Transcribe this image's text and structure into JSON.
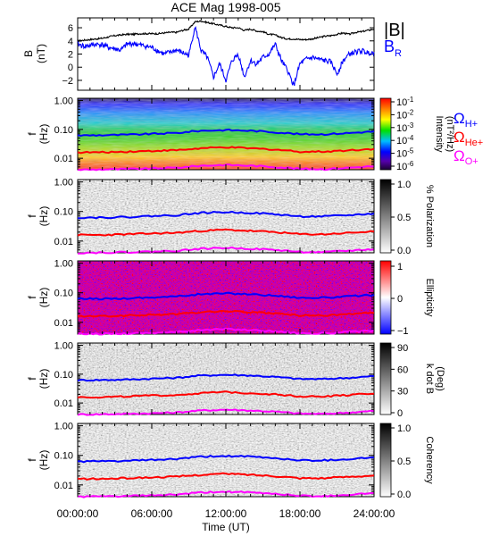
{
  "chart_data": {
    "type": "spectrogram-panels",
    "title": "ACE Mag 1998-005",
    "xlabel": "Time (UT)",
    "xticks": [
      "00:00:00",
      "06:00:00",
      "12:00:00",
      "18:00:00",
      "24:00:00"
    ],
    "xlim_hours": [
      0,
      24
    ],
    "panels": [
      {
        "id": "field",
        "type": "line",
        "ylabel": "B",
        "yunit": "(nT)",
        "ylim": [
          -3.5,
          7.5
        ],
        "yticks": [
          "6",
          "4",
          "2",
          "0",
          "−2"
        ],
        "ytick_values": [
          6,
          4,
          2,
          0,
          -2
        ],
        "legend": [
          {
            "label": "|B|",
            "color": "#000000"
          },
          {
            "label": "B",
            "sub": "R",
            "color": "#0000ff"
          }
        ],
        "series": [
          {
            "name": "|B|",
            "color": "#000000",
            "x_hours": [
              0,
              0.5,
              1,
              1.5,
              2,
              2.5,
              3,
              3.5,
              4,
              4.5,
              5,
              5.5,
              6,
              6.5,
              7,
              7.5,
              8,
              8.5,
              9,
              9.5,
              10,
              10.5,
              11,
              11.5,
              12,
              12.5,
              13,
              13.5,
              14,
              14.5,
              15,
              15.5,
              16,
              16.5,
              17,
              17.5,
              18,
              18.5,
              19,
              19.5,
              20,
              20.5,
              21,
              21.5,
              22,
              22.5,
              23,
              23.5,
              24
            ],
            "values": [
              4.0,
              4.1,
              4.2,
              4.3,
              4.4,
              4.6,
              4.8,
              4.9,
              5.0,
              5.0,
              5.1,
              5.1,
              5.1,
              5.1,
              5.2,
              5.3,
              5.3,
              5.6,
              5.8,
              6.9,
              7.0,
              6.8,
              6.6,
              6.4,
              6.2,
              6.0,
              6.0,
              5.6,
              5.8,
              5.5,
              5.4,
              5.0,
              4.9,
              4.5,
              4.3,
              4.3,
              4.2,
              4.2,
              4.3,
              4.5,
              4.7,
              4.8,
              5.0,
              5.2,
              5.0,
              5.3,
              5.4,
              5.6,
              5.8
            ]
          },
          {
            "name": "BR",
            "color": "#0000ff",
            "x_hours": [
              0,
              0.5,
              1,
              1.5,
              2,
              2.5,
              3,
              3.5,
              4,
              4.5,
              5,
              5.5,
              6,
              6.5,
              7,
              7.5,
              8,
              8.5,
              9,
              9.5,
              10,
              10.5,
              11,
              11.5,
              12,
              12.5,
              13,
              13.5,
              14,
              14.5,
              15,
              15.5,
              16,
              16.5,
              17,
              17.5,
              18,
              18.5,
              19,
              19.5,
              20,
              20.5,
              21,
              21.5,
              22,
              22.5,
              23,
              23.5,
              24
            ],
            "values": [
              3.5,
              3.2,
              3.3,
              3.5,
              3.4,
              3.0,
              2.8,
              2.6,
              3.5,
              3.6,
              3.4,
              3.2,
              3.0,
              2.5,
              2.0,
              2.3,
              2.6,
              2.2,
              1.8,
              6.2,
              2.5,
              1.5,
              -1.5,
              0.5,
              -2.0,
              1.0,
              2.0,
              -1.5,
              1.0,
              0.5,
              1.5,
              2.0,
              3.5,
              1.0,
              -0.5,
              -2.8,
              0.5,
              1.2,
              1.5,
              1.2,
              1.0,
              0.8,
              -1.0,
              1.0,
              2.0,
              2.3,
              2.5,
              2.2,
              2.3
            ]
          }
        ]
      },
      {
        "id": "intensity",
        "type": "heatmap",
        "ylabel": "f",
        "yunit": "(Hz)",
        "scale": "log",
        "ylim": [
          0.004,
          1.2
        ],
        "yticks": [
          "1.00",
          "0.10",
          "0.01"
        ],
        "colorbar": {
          "label": "Intensity",
          "unit": "(nT²/Hz)",
          "scale": "log",
          "ticks": [
            {
              "base": "10",
              "exp": "-1"
            },
            {
              "base": "10",
              "exp": "-2"
            },
            {
              "base": "10",
              "exp": "-3"
            },
            {
              "base": "10",
              "exp": "-4"
            },
            {
              "base": "10",
              "exp": "-5"
            },
            {
              "base": "10",
              "exp": "-6"
            }
          ]
        },
        "lines_legend": [
          {
            "label": "Ω",
            "sub": "H+",
            "color": "#0000ff"
          },
          {
            "label": "Ω",
            "sub": "He+",
            "color": "#ff0000"
          },
          {
            "label": "Ω",
            "sub": "O+",
            "color": "#ff00ff"
          }
        ]
      },
      {
        "id": "polarization",
        "type": "heatmap",
        "ylabel": "f",
        "yunit": "(Hz)",
        "scale": "log",
        "colorbar": {
          "label": "% Polarization",
          "unit": "",
          "ticks": [
            "1.0",
            "0.5",
            "0.0"
          ]
        }
      },
      {
        "id": "ellipticity",
        "type": "heatmap",
        "ylabel": "f",
        "yunit": "(Hz)",
        "scale": "log",
        "colorbar": {
          "label": "Ellipticity",
          "unit": "",
          "ticks": [
            "1",
            "0",
            "−1"
          ]
        }
      },
      {
        "id": "kdotb",
        "type": "heatmap",
        "ylabel": "f",
        "yunit": "(Hz)",
        "scale": "log",
        "colorbar": {
          "label": "k dot B",
          "unit": "(Deg)",
          "ticks": [
            "90",
            "60",
            "30",
            "0"
          ]
        }
      },
      {
        "id": "coherency",
        "type": "heatmap",
        "ylabel": "f",
        "yunit": "(Hz)",
        "scale": "log",
        "colorbar": {
          "label": "Coherency",
          "unit": "",
          "ticks": [
            "1.0",
            "0.5",
            "0.0"
          ]
        }
      }
    ],
    "gyrofrequency_lines": {
      "x_hours": [
        0,
        2,
        4,
        6,
        8,
        10,
        12,
        14,
        16,
        18,
        20,
        22,
        24
      ],
      "H+": [
        0.062,
        0.063,
        0.065,
        0.07,
        0.075,
        0.09,
        0.095,
        0.09,
        0.08,
        0.068,
        0.068,
        0.075,
        0.085
      ],
      "He+": [
        0.016,
        0.016,
        0.017,
        0.018,
        0.019,
        0.022,
        0.024,
        0.022,
        0.02,
        0.017,
        0.017,
        0.019,
        0.021
      ],
      "O+": [
        0.004,
        0.0041,
        0.0042,
        0.0044,
        0.0047,
        0.0055,
        0.0059,
        0.0055,
        0.005,
        0.0043,
        0.0042,
        0.0047,
        0.0053
      ],
      "colors": {
        "H+": "#0000ff",
        "He+": "#ff0000",
        "O+": "#ff00ff"
      }
    }
  }
}
